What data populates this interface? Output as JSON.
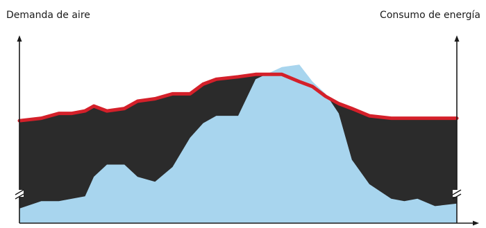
{
  "chart": {
    "left_axis_label": "Demanda de aire",
    "right_axis_label": "Consumo de energía"
  },
  "chart_data": {
    "type": "area",
    "title": "",
    "x": [
      0,
      5,
      9,
      12,
      15,
      17,
      20,
      24,
      27,
      31,
      35,
      39,
      42,
      45,
      50,
      54,
      60,
      64,
      67,
      70,
      73,
      76,
      80,
      85,
      88,
      91,
      95,
      100
    ],
    "series": [
      {
        "name": "Consumo de energía",
        "color": "#d4202a",
        "values": [
          42,
          43,
          45,
          45,
          46,
          48,
          46,
          47,
          50,
          51,
          53,
          53,
          57,
          59,
          60,
          61,
          61,
          58,
          56,
          52,
          49,
          47,
          44,
          43,
          43,
          43,
          43,
          43
        ]
      },
      {
        "name": "Demanda de aire",
        "color": "#a8d5ee",
        "values": [
          6,
          9,
          9,
          10,
          11,
          19,
          24,
          24,
          19,
          17,
          23,
          35,
          41,
          44,
          44,
          59,
          64,
          65,
          58,
          53,
          45,
          26,
          16,
          10,
          9,
          10,
          7,
          8
        ]
      }
    ],
    "fill_between_color": "#2b2b2b",
    "ylim": [
      0,
      75
    ],
    "axes": [
      "left",
      "right",
      "bottom"
    ],
    "axis_breaks": "left and right axes near the bottom",
    "ticks": false,
    "grid": false
  }
}
